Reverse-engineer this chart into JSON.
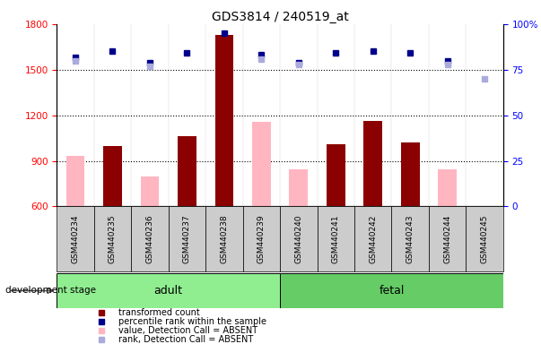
{
  "title": "GDS3814 / 240519_at",
  "samples": [
    "GSM440234",
    "GSM440235",
    "GSM440236",
    "GSM440237",
    "GSM440238",
    "GSM440239",
    "GSM440240",
    "GSM440241",
    "GSM440242",
    "GSM440243",
    "GSM440244",
    "GSM440245"
  ],
  "bar_values": [
    null,
    1000,
    null,
    1060,
    1730,
    null,
    null,
    1010,
    1160,
    1020,
    null,
    null
  ],
  "pink_values": [
    935,
    null,
    795,
    null,
    null,
    1155,
    845,
    null,
    null,
    null,
    845,
    null
  ],
  "rank_blue_dark": [
    82,
    85,
    79,
    84,
    95,
    83,
    79,
    84,
    85,
    84,
    80,
    null
  ],
  "rank_blue_light": [
    80,
    null,
    77,
    null,
    null,
    81,
    78,
    null,
    null,
    null,
    78,
    70
  ],
  "ylim_left": [
    600,
    1800
  ],
  "ylim_right": [
    0,
    100
  ],
  "yticks_left": [
    600,
    900,
    1200,
    1500,
    1800
  ],
  "yticks_right": [
    0,
    25,
    50,
    75,
    100
  ],
  "bar_color": "#8B0000",
  "pink_color": "#FFB6C1",
  "blue_dark": "#00008B",
  "blue_light": "#AAAADD",
  "adult_color": "#90EE90",
  "fetal_color": "#66CC66",
  "legend_items": [
    [
      "#8B0000",
      "transformed count"
    ],
    [
      "#00008B",
      "percentile rank within the sample"
    ],
    [
      "#FFB6C1",
      "value, Detection Call = ABSENT"
    ],
    [
      "#AAAADD",
      "rank, Detection Call = ABSENT"
    ]
  ]
}
